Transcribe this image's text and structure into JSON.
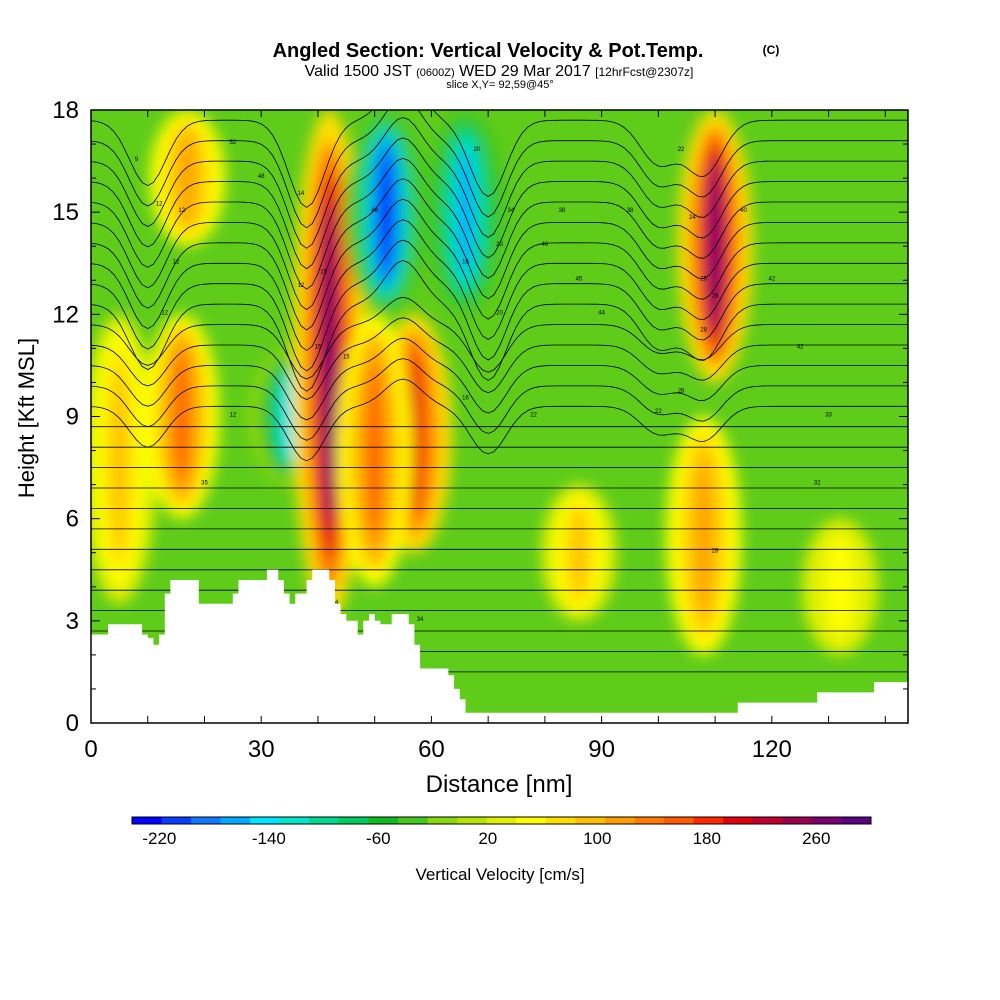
{
  "chart_data": {
    "type": "heatmap",
    "title": "Angled Section: Vertical Velocity & Pot.Temp.",
    "title_unit": "(C)",
    "subtitle": {
      "valid_prefix": "Valid 1500 JST",
      "utc": "(0600Z)",
      "date": "WED 29 Mar 2017",
      "forecast": "[12hrFcst@2307z]"
    },
    "slice_label": "slice X,Y= 92,59@45°",
    "xlabel": "Distance [nm]",
    "ylabel": "Height [Kft MSL]",
    "xlim": [
      0,
      144
    ],
    "ylim": [
      0,
      18
    ],
    "x_ticks": [
      0,
      30,
      60,
      90,
      120
    ],
    "x_tick_labels": [
      "0",
      "30",
      "60",
      "90",
      "120"
    ],
    "y_ticks": [
      0,
      3,
      6,
      9,
      12,
      15,
      18
    ],
    "y_tick_labels": [
      "0",
      "3",
      "6",
      "9",
      "12",
      "15",
      "18"
    ],
    "colorbar": {
      "label": "Vertical Velocity [cm/s]",
      "tick_labels": [
        "-220",
        "-140",
        "-60",
        "20",
        "100",
        "180",
        "260"
      ],
      "tick_values": [
        -220,
        -140,
        -60,
        20,
        100,
        180,
        260
      ],
      "range": [
        -240,
        300
      ],
      "colors": [
        "#0000ff",
        "#0a3cff",
        "#1478ff",
        "#00aaff",
        "#00e6ff",
        "#00e6c8",
        "#00d890",
        "#00cc60",
        "#10bb20",
        "#44c81a",
        "#88d810",
        "#b4e400",
        "#e0f000",
        "#ffff00",
        "#ffdf00",
        "#ffc000",
        "#ff9e00",
        "#ff7a00",
        "#ff5a00",
        "#ff2800",
        "#e00010",
        "#c0002e",
        "#9a0050",
        "#7a006e",
        "#5a0080"
      ]
    },
    "velocity_cores": [
      {
        "x": 5,
        "z_min": 3.5,
        "z_max": 12,
        "w": 100
      },
      {
        "x": 16,
        "z_min": 6,
        "z_max": 12,
        "w": 150
      },
      {
        "x": 17,
        "z_min": 14,
        "z_max": 18,
        "w": 120
      },
      {
        "x": 35,
        "z_min": 7,
        "z_max": 11,
        "w": -140
      },
      {
        "x": 42,
        "z_min": 3,
        "z_max": 18,
        "w": 260
      },
      {
        "x": 52,
        "z_min": 12,
        "z_max": 18,
        "w": -220
      },
      {
        "x": 57,
        "z_min": 5,
        "z_max": 12,
        "w": 200
      },
      {
        "x": 50,
        "z_min": 4,
        "z_max": 12,
        "w": 160
      },
      {
        "x": 66,
        "z_min": 12,
        "z_max": 18,
        "w": -160
      },
      {
        "x": 86,
        "z_min": 3,
        "z_max": 7,
        "w": 100
      },
      {
        "x": 108,
        "z_min": 2,
        "z_max": 9,
        "w": 120
      },
      {
        "x": 110,
        "z_min": 10,
        "z_max": 18,
        "w": 260
      },
      {
        "x": 132,
        "z_min": 2,
        "z_max": 6,
        "w": 60
      }
    ],
    "terrain": {
      "x": [
        0,
        3,
        9,
        10,
        11,
        12,
        13,
        14,
        15,
        19,
        20,
        24,
        25,
        26,
        27,
        28,
        29,
        30,
        31,
        32,
        33,
        34,
        35,
        36,
        37,
        38,
        39,
        40,
        41,
        42,
        43,
        44,
        45,
        46,
        47,
        48,
        49,
        50,
        51,
        53,
        54,
        55,
        56,
        57,
        58,
        60,
        62,
        63,
        64,
        65,
        66,
        68,
        72,
        80,
        90,
        100,
        110,
        114,
        120,
        128,
        134,
        138,
        144
      ],
      "z": [
        2.6,
        2.9,
        2.6,
        2.5,
        2.3,
        2.6,
        3.8,
        4.2,
        4.2,
        3.5,
        3.5,
        3.5,
        3.8,
        4.2,
        4.2,
        4.2,
        4.2,
        4.2,
        4.5,
        4.5,
        4.2,
        3.8,
        3.5,
        3.8,
        3.8,
        4.2,
        4.5,
        4.5,
        4.5,
        4.2,
        3.5,
        3.2,
        3.0,
        3.0,
        2.6,
        3.0,
        3.2,
        3.0,
        2.9,
        3.2,
        3.2,
        3.2,
        2.9,
        2.3,
        1.6,
        1.6,
        1.6,
        1.4,
        1.0,
        0.7,
        0.3,
        0.3,
        0.3,
        0.3,
        0.3,
        0.3,
        0.3,
        0.6,
        0.6,
        0.9,
        0.9,
        1.2,
        1.2
      ]
    },
    "contour_labels": [
      "9",
      "12",
      "12",
      "12",
      "12",
      "12",
      "12",
      "14",
      "15",
      "15",
      "15",
      "16",
      "16",
      "20",
      "20",
      "20",
      "22",
      "22",
      "22",
      "24",
      "25",
      "28",
      "28",
      "28",
      "28",
      "32",
      "33",
      "34",
      "34",
      "35",
      "34",
      "38",
      "38",
      "40",
      "42",
      "42",
      "44",
      "45",
      "46",
      "48",
      "48",
      "52"
    ]
  }
}
